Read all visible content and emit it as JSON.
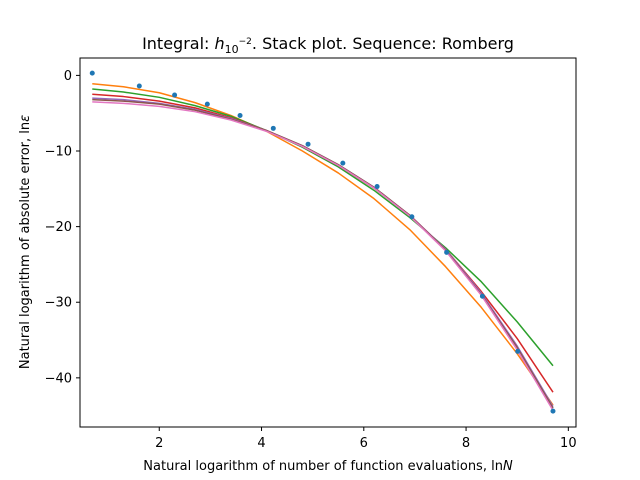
{
  "chart_data": {
    "type": "line",
    "title": {
      "prefix": "Integral: ",
      "symbol": "h",
      "subscript": "10",
      "superscript": "−2",
      "suffix": ". Stack plot. Sequence: Romberg"
    },
    "xlabel": {
      "text": "Natural logarithm of number of function evaluations, ln",
      "symbol": "N"
    },
    "ylabel": {
      "text": "Natural logarithm of absolute error, ln",
      "symbol": "ε"
    },
    "xlim": [
      0.45,
      10.15
    ],
    "ylim": [
      -46.5,
      2.3
    ],
    "xticks": [
      2,
      4,
      6,
      8,
      10
    ],
    "yticks": [
      0,
      -10,
      -20,
      -30,
      -40
    ],
    "grid": false,
    "points": {
      "color": "#1f77b4",
      "x": [
        0.69,
        1.61,
        2.3,
        2.94,
        3.58,
        4.23,
        4.91,
        5.59,
        6.26,
        6.94,
        7.62,
        8.32,
        9.01,
        9.7
      ],
      "y": [
        0.3,
        -1.4,
        -2.6,
        -3.8,
        -5.3,
        -7.0,
        -9.1,
        -11.6,
        -14.7,
        -18.7,
        -23.4,
        -29.2,
        -36.5,
        -44.4
      ]
    },
    "series": [
      {
        "color": "#ff7f0e",
        "x": [
          0.69,
          1.3,
          2.0,
          2.7,
          3.4,
          4.1,
          4.8,
          5.5,
          6.2,
          6.9,
          7.6,
          8.3,
          9.0,
          9.7
        ],
        "y": [
          -1.1,
          -1.5,
          -2.3,
          -3.6,
          -5.3,
          -7.4,
          -10.0,
          -12.9,
          -16.3,
          -20.4,
          -25.3,
          -30.7,
          -36.8,
          -43.6
        ]
      },
      {
        "color": "#2ca02c",
        "x": [
          0.69,
          1.3,
          2.0,
          2.7,
          3.4,
          4.1,
          4.8,
          5.5,
          6.2,
          6.9,
          7.6,
          8.3,
          9.0,
          9.7
        ],
        "y": [
          -1.8,
          -2.2,
          -2.9,
          -4.0,
          -5.4,
          -7.3,
          -9.5,
          -12.1,
          -15.2,
          -18.8,
          -22.8,
          -27.3,
          -32.6,
          -38.4
        ]
      },
      {
        "color": "#d62728",
        "x": [
          0.69,
          1.3,
          2.0,
          2.7,
          3.4,
          4.1,
          4.8,
          5.5,
          6.2,
          6.9,
          7.6,
          8.3,
          9.0,
          9.7
        ],
        "y": [
          -2.5,
          -2.8,
          -3.4,
          -4.3,
          -5.6,
          -7.3,
          -9.4,
          -11.9,
          -14.9,
          -18.5,
          -23.0,
          -28.6,
          -34.8,
          -41.9
        ]
      },
      {
        "color": "#9467bd",
        "x": [
          0.69,
          1.3,
          2.0,
          2.7,
          3.4,
          4.1,
          4.8,
          5.5,
          6.2,
          6.9,
          7.6,
          8.3,
          9.0,
          9.7
        ],
        "y": [
          -3.0,
          -3.2,
          -3.7,
          -4.5,
          -5.7,
          -7.3,
          -9.3,
          -11.8,
          -14.8,
          -18.5,
          -23.0,
          -28.8,
          -35.8,
          -43.8
        ]
      },
      {
        "color": "#8c564b",
        "x": [
          0.69,
          1.3,
          2.0,
          2.7,
          3.4,
          4.1,
          4.8,
          5.5,
          6.2,
          6.9,
          7.6,
          8.3,
          9.0,
          9.7
        ],
        "y": [
          -3.2,
          -3.4,
          -3.8,
          -4.6,
          -5.8,
          -7.3,
          -9.3,
          -11.8,
          -14.8,
          -18.5,
          -23.1,
          -29.0,
          -36.0,
          -44.0
        ]
      },
      {
        "color": "#e377c2",
        "x": [
          0.69,
          1.3,
          2.0,
          2.7,
          3.4,
          4.1,
          4.8,
          5.5,
          6.2,
          6.9,
          7.6,
          8.3,
          9.0,
          9.7
        ],
        "y": [
          -3.5,
          -3.7,
          -4.1,
          -4.8,
          -5.9,
          -7.4,
          -9.4,
          -11.9,
          -14.9,
          -18.6,
          -23.2,
          -29.1,
          -36.3,
          -44.3
        ]
      }
    ]
  }
}
